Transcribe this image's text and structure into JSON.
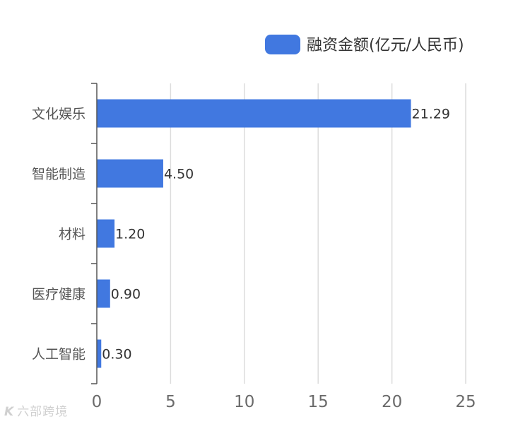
{
  "chart_data": {
    "type": "bar",
    "orientation": "horizontal",
    "categories": [
      "文化娱乐",
      "智能制造",
      "材料",
      "医疗健康",
      "人工智能"
    ],
    "series": [
      {
        "name": "融资金额(亿元/人民币)",
        "values": [
          21.29,
          4.5,
          1.2,
          0.9,
          0.3
        ],
        "color": "#4178e0"
      }
    ],
    "value_labels": [
      "21.29",
      "4.50",
      "1.20",
      "0.90",
      "0.30"
    ],
    "xlim": [
      0,
      25
    ],
    "xticks": [
      0,
      5,
      10,
      15,
      20,
      25
    ],
    "grid": "vertical",
    "legend_position": "top-right"
  },
  "watermark": {
    "logo": "K",
    "text": "六部跨境"
  }
}
